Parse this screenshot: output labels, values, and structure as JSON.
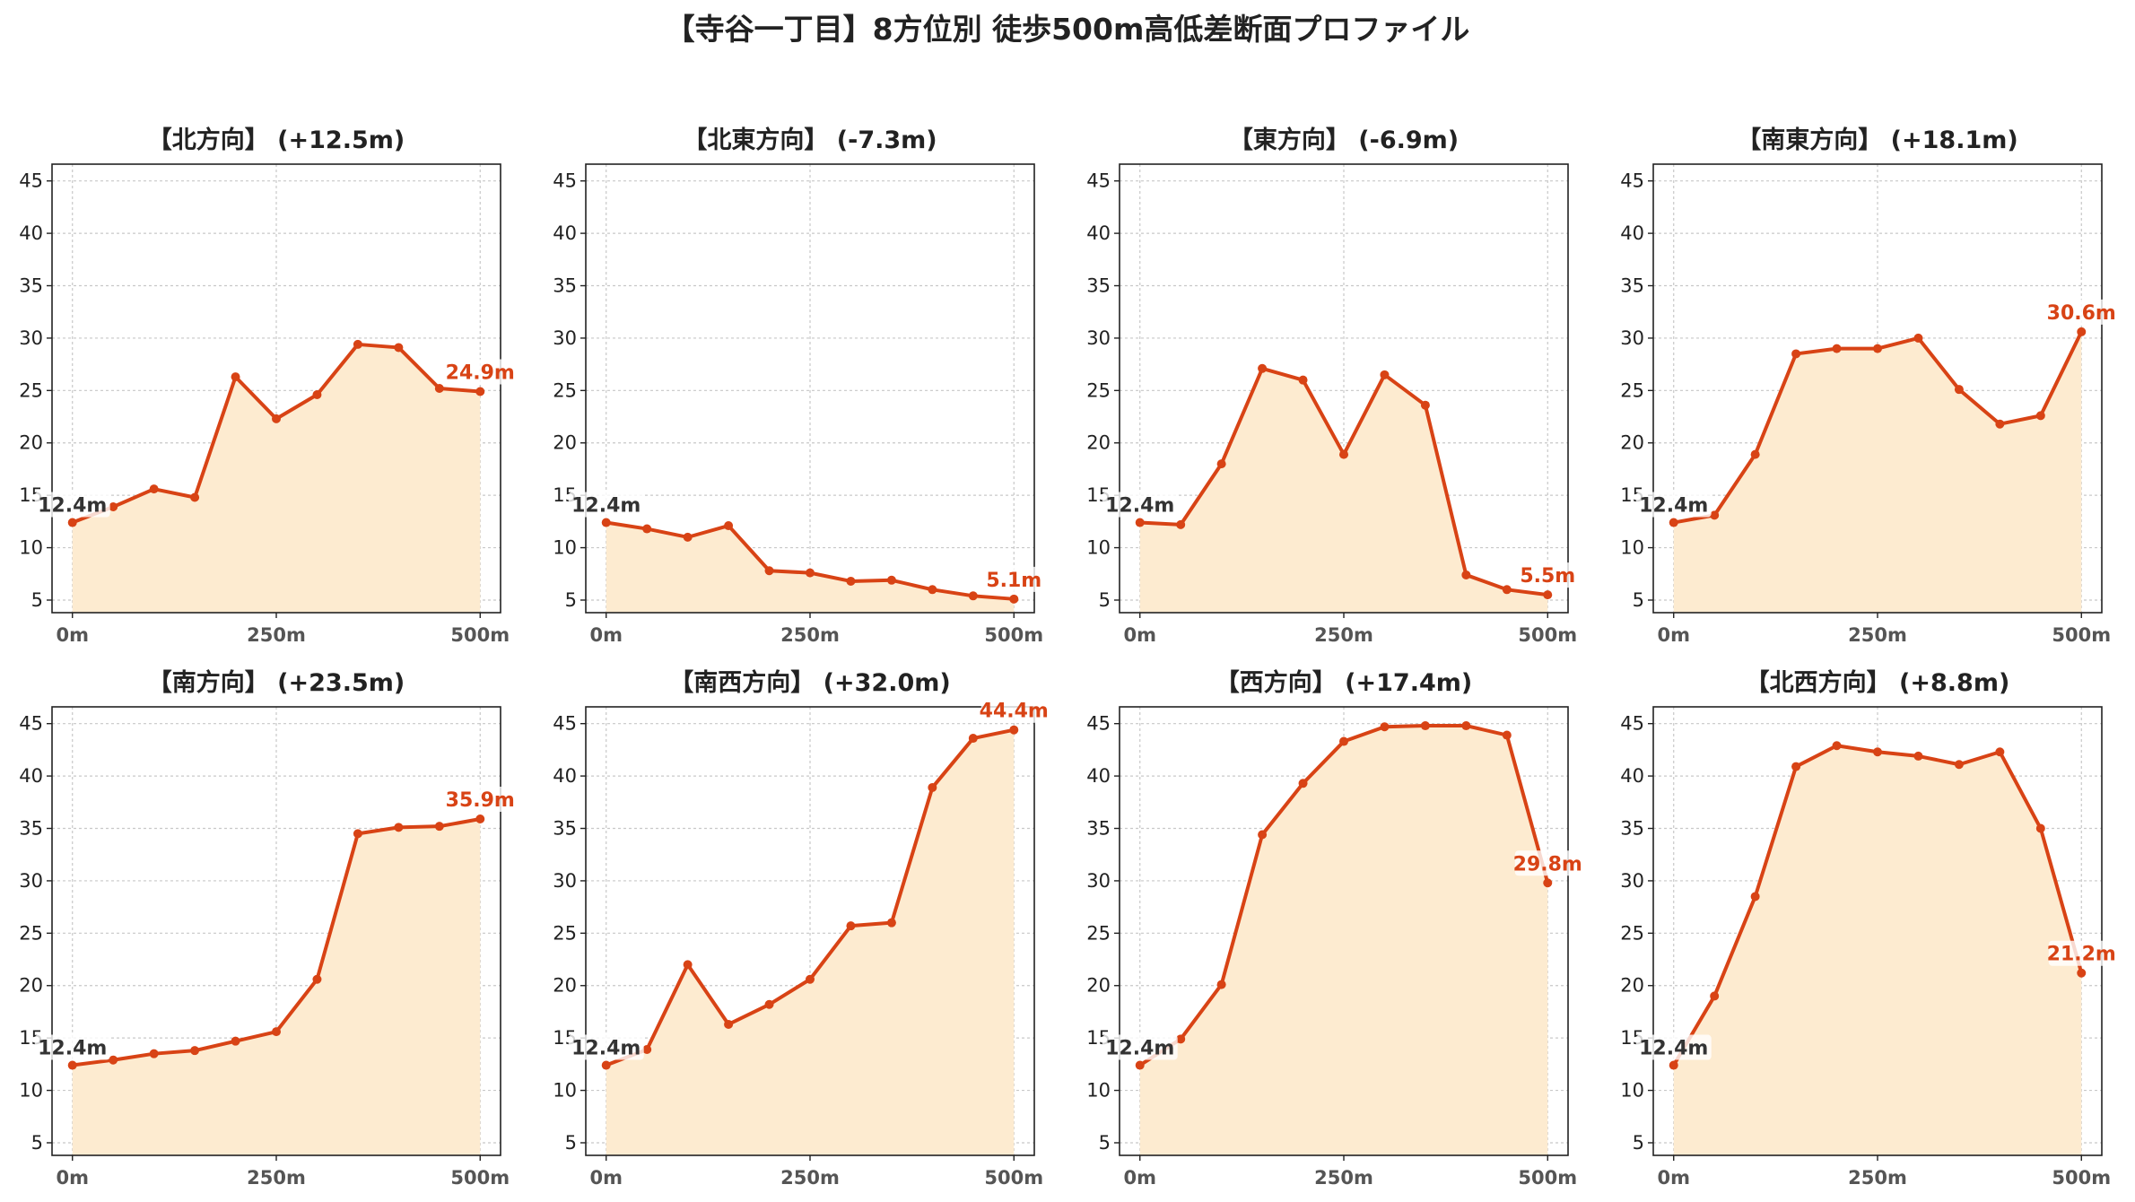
{
  "title": "【寺谷一丁目】8方位別 徒歩500m高低差断面プロファイル",
  "colors": {
    "line": "#d84315",
    "fill": "#fdebd0",
    "start_label": "#333333"
  },
  "chart_data": [
    {
      "type": "area",
      "title": "【北方向】 (+12.5m)",
      "ylim": [
        3.8,
        46.6
      ],
      "yticks": [
        5,
        10,
        15,
        20,
        25,
        30,
        35,
        40,
        45
      ],
      "x": [
        0,
        50,
        100,
        150,
        200,
        250,
        300,
        350,
        400,
        450,
        500
      ],
      "xticks": [
        0,
        250,
        500
      ],
      "xtick_labels": [
        "0m",
        "250m",
        "500m"
      ],
      "values": [
        12.4,
        13.9,
        15.6,
        14.8,
        26.3,
        22.3,
        24.6,
        29.4,
        29.1,
        25.2,
        24.9
      ],
      "start_label": "12.4m",
      "end_label": "24.9m"
    },
    {
      "type": "area",
      "title": "【北東方向】 (-7.3m)",
      "ylim": [
        3.8,
        46.6
      ],
      "yticks": [
        5,
        10,
        15,
        20,
        25,
        30,
        35,
        40,
        45
      ],
      "x": [
        0,
        50,
        100,
        150,
        200,
        250,
        300,
        350,
        400,
        450,
        500
      ],
      "xticks": [
        0,
        250,
        500
      ],
      "xtick_labels": [
        "0m",
        "250m",
        "500m"
      ],
      "values": [
        12.4,
        11.8,
        11.0,
        12.1,
        7.8,
        7.6,
        6.8,
        6.9,
        6.0,
        5.4,
        5.1
      ],
      "start_label": "12.4m",
      "end_label": "5.1m"
    },
    {
      "type": "area",
      "title": "【東方向】 (-6.9m)",
      "ylim": [
        3.8,
        46.6
      ],
      "yticks": [
        5,
        10,
        15,
        20,
        25,
        30,
        35,
        40,
        45
      ],
      "x": [
        0,
        50,
        100,
        150,
        200,
        250,
        300,
        350,
        400,
        450,
        500
      ],
      "xticks": [
        0,
        250,
        500
      ],
      "xtick_labels": [
        "0m",
        "250m",
        "500m"
      ],
      "values": [
        12.4,
        12.2,
        18.0,
        27.1,
        26.0,
        18.9,
        26.5,
        23.6,
        7.4,
        6.0,
        5.5
      ],
      "start_label": "12.4m",
      "end_label": "5.5m"
    },
    {
      "type": "area",
      "title": "【南東方向】 (+18.1m)",
      "ylim": [
        3.8,
        46.6
      ],
      "yticks": [
        5,
        10,
        15,
        20,
        25,
        30,
        35,
        40,
        45
      ],
      "x": [
        0,
        50,
        100,
        150,
        200,
        250,
        300,
        350,
        400,
        450,
        500
      ],
      "xticks": [
        0,
        250,
        500
      ],
      "xtick_labels": [
        "0m",
        "250m",
        "500m"
      ],
      "values": [
        12.4,
        13.1,
        18.9,
        28.5,
        29.0,
        29.0,
        30.0,
        25.1,
        21.8,
        22.6,
        30.6
      ],
      "start_label": "12.4m",
      "end_label": "30.6m"
    },
    {
      "type": "area",
      "title": "【南方向】 (+23.5m)",
      "ylim": [
        3.8,
        46.6
      ],
      "yticks": [
        5,
        10,
        15,
        20,
        25,
        30,
        35,
        40,
        45
      ],
      "x": [
        0,
        50,
        100,
        150,
        200,
        250,
        300,
        350,
        400,
        450,
        500
      ],
      "xticks": [
        0,
        250,
        500
      ],
      "xtick_labels": [
        "0m",
        "250m",
        "500m"
      ],
      "values": [
        12.4,
        12.9,
        13.5,
        13.8,
        14.7,
        15.6,
        20.6,
        34.5,
        35.1,
        35.2,
        35.9
      ],
      "start_label": "12.4m",
      "end_label": "35.9m"
    },
    {
      "type": "area",
      "title": "【南西方向】 (+32.0m)",
      "ylim": [
        3.8,
        46.6
      ],
      "yticks": [
        5,
        10,
        15,
        20,
        25,
        30,
        35,
        40,
        45
      ],
      "x": [
        0,
        50,
        100,
        150,
        200,
        250,
        300,
        350,
        400,
        450,
        500
      ],
      "xticks": [
        0,
        250,
        500
      ],
      "xtick_labels": [
        "0m",
        "250m",
        "500m"
      ],
      "values": [
        12.4,
        13.9,
        22.0,
        16.3,
        18.2,
        20.6,
        25.7,
        26.0,
        38.9,
        43.6,
        44.4
      ],
      "start_label": "12.4m",
      "end_label": "44.4m"
    },
    {
      "type": "area",
      "title": "【西方向】 (+17.4m)",
      "ylim": [
        3.8,
        46.6
      ],
      "yticks": [
        5,
        10,
        15,
        20,
        25,
        30,
        35,
        40,
        45
      ],
      "x": [
        0,
        50,
        100,
        150,
        200,
        250,
        300,
        350,
        400,
        450,
        500
      ],
      "xticks": [
        0,
        250,
        500
      ],
      "xtick_labels": [
        "0m",
        "250m",
        "500m"
      ],
      "values": [
        12.4,
        14.9,
        20.1,
        34.4,
        39.3,
        43.3,
        44.7,
        44.8,
        44.8,
        43.9,
        29.8
      ],
      "start_label": "12.4m",
      "end_label": "29.8m"
    },
    {
      "type": "area",
      "title": "【北西方向】 (+8.8m)",
      "ylim": [
        3.8,
        46.6
      ],
      "yticks": [
        5,
        10,
        15,
        20,
        25,
        30,
        35,
        40,
        45
      ],
      "x": [
        0,
        50,
        100,
        150,
        200,
        250,
        300,
        350,
        400,
        450,
        500
      ],
      "xticks": [
        0,
        250,
        500
      ],
      "xtick_labels": [
        "0m",
        "250m",
        "500m"
      ],
      "values": [
        12.4,
        19.0,
        28.5,
        40.9,
        42.9,
        42.3,
        41.9,
        41.1,
        42.3,
        35.0,
        21.2
      ],
      "start_label": "12.4m",
      "end_label": "21.2m"
    }
  ]
}
